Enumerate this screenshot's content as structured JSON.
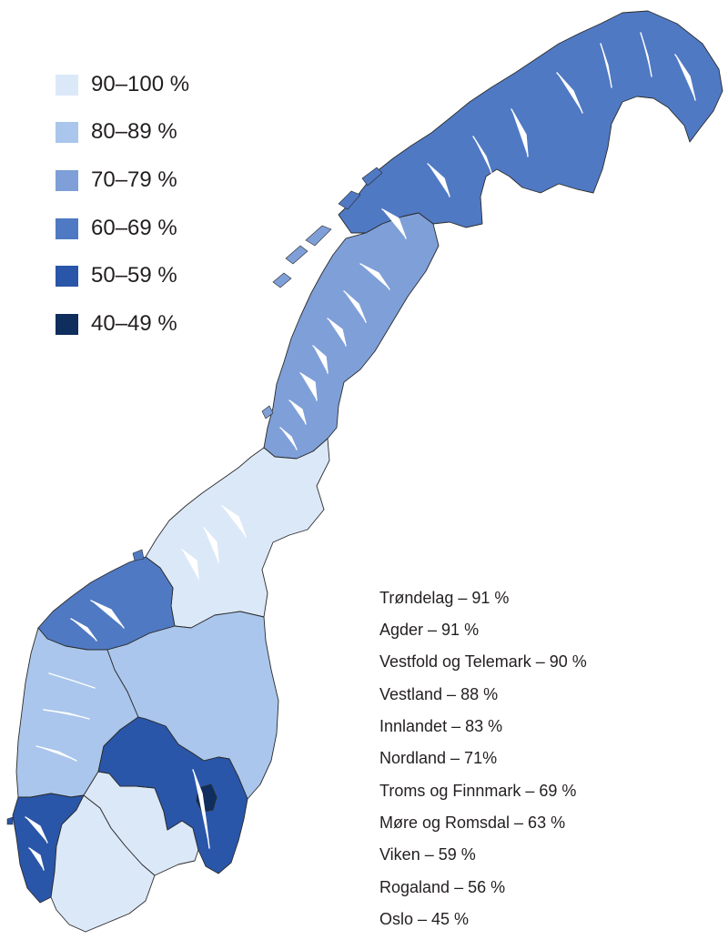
{
  "legend": [
    {
      "label": "90–100 %",
      "color": "#dbe8f8"
    },
    {
      "label": "80–89 %",
      "color": "#aac6ec"
    },
    {
      "label": "70–79 %",
      "color": "#7f9fd8"
    },
    {
      "label": "60–69 %",
      "color": "#5079c3"
    },
    {
      "label": "50–59 %",
      "color": "#2a56a9"
    },
    {
      "label": "40–49 %",
      "color": "#0f2e5e"
    }
  ],
  "regions": [
    {
      "label": "Trøndelag – 91 %",
      "name": "Trøndelag",
      "percent": 91,
      "color": "#dbe8f8"
    },
    {
      "label": "Agder – 91 %",
      "name": "Agder",
      "percent": 91,
      "color": "#dbe8f8"
    },
    {
      "label": "Vestfold og Telemark – 90 %",
      "name": "Vestfold og Telemark",
      "percent": 90,
      "color": "#dbe8f8"
    },
    {
      "label": "Vestland – 88 %",
      "name": "Vestland",
      "percent": 88,
      "color": "#aac6ec"
    },
    {
      "label": "Innlandet – 83 %",
      "name": "Innlandet",
      "percent": 83,
      "color": "#aac6ec"
    },
    {
      "label": "Nordland – 71%",
      "name": "Nordland",
      "percent": 71,
      "color": "#7f9fd8"
    },
    {
      "label": "Troms og Finnmark – 69 %",
      "name": "Troms og Finnmark",
      "percent": 69,
      "color": "#5079c3"
    },
    {
      "label": "Møre og Romsdal – 63 %",
      "name": "Møre og Romsdal",
      "percent": 63,
      "color": "#5079c3"
    },
    {
      "label": "Viken – 59 %",
      "name": "Viken",
      "percent": 59,
      "color": "#2a56a9"
    },
    {
      "label": "Rogaland – 56 %",
      "name": "Rogaland",
      "percent": 56,
      "color": "#2a56a9"
    },
    {
      "label": "Oslo – 45 %",
      "name": "Oslo",
      "percent": 45,
      "color": "#0f2e5e"
    }
  ]
}
